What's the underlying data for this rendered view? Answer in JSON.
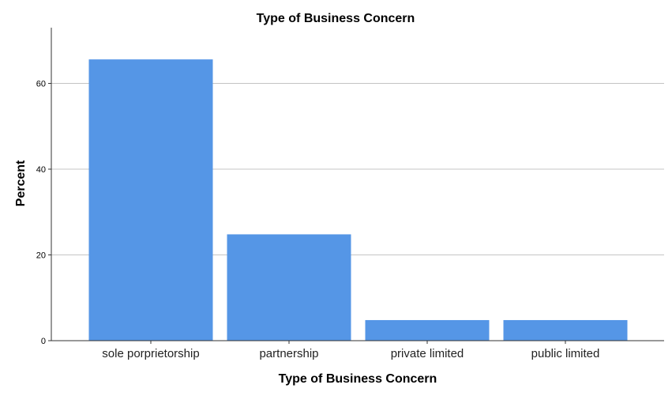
{
  "chart_data": {
    "type": "bar",
    "title": "Type of Business Concern",
    "xlabel": "Type of Business Concern",
    "ylabel": "Percent",
    "categories": [
      "sole porprietorship",
      "partnership",
      "private limited",
      "public limited"
    ],
    "values": [
      65.6,
      24.8,
      4.8,
      4.8
    ],
    "ylim": [
      0,
      73
    ],
    "yticks": [
      0,
      20,
      40,
      60
    ],
    "grid": true,
    "bar_color": "#5596e6"
  }
}
